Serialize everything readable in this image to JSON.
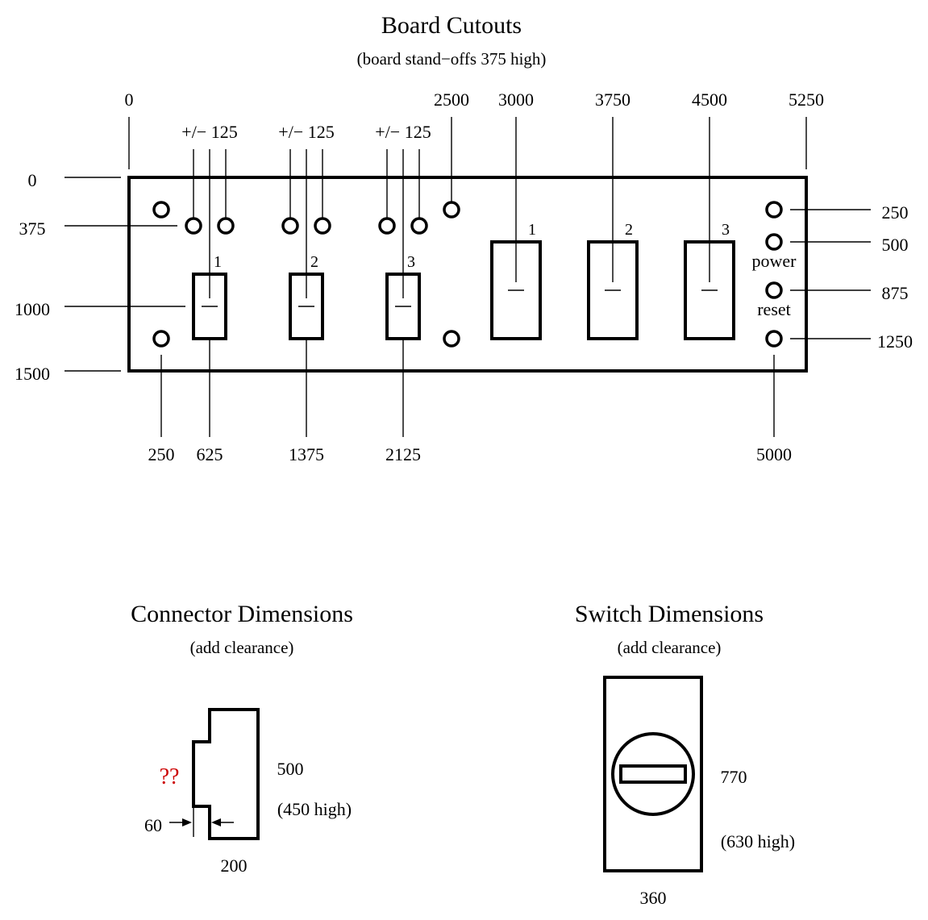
{
  "board": {
    "title": "Board Cutouts",
    "subtitle": "(board stand−offs 375 high)",
    "top_labels": [
      "0",
      "2500",
      "3000",
      "3750",
      "4500",
      "5250"
    ],
    "tolerance_label": "+/− 125",
    "left_labels": [
      "0",
      "375",
      "1000",
      "1500"
    ],
    "right_labels": [
      "250",
      "500",
      "875",
      "1250"
    ],
    "bottom_labels": [
      "250",
      "625",
      "1375",
      "2125",
      "5000"
    ],
    "connector_numbers": [
      "1",
      "2",
      "3"
    ],
    "switch_numbers": [
      "1",
      "2",
      "3"
    ],
    "power_label": "power",
    "reset_label": "reset"
  },
  "connector": {
    "title": "Connector Dimensions",
    "subtitle": "(add clearance)",
    "unknown": "??",
    "height_label": "500",
    "high_label": "(450 high)",
    "offset_label": "60",
    "width_label": "200"
  },
  "switch": {
    "title": "Switch Dimensions",
    "subtitle": "(add clearance)",
    "height_label": "770",
    "high_label": "(630 high)",
    "width_label": "360"
  }
}
